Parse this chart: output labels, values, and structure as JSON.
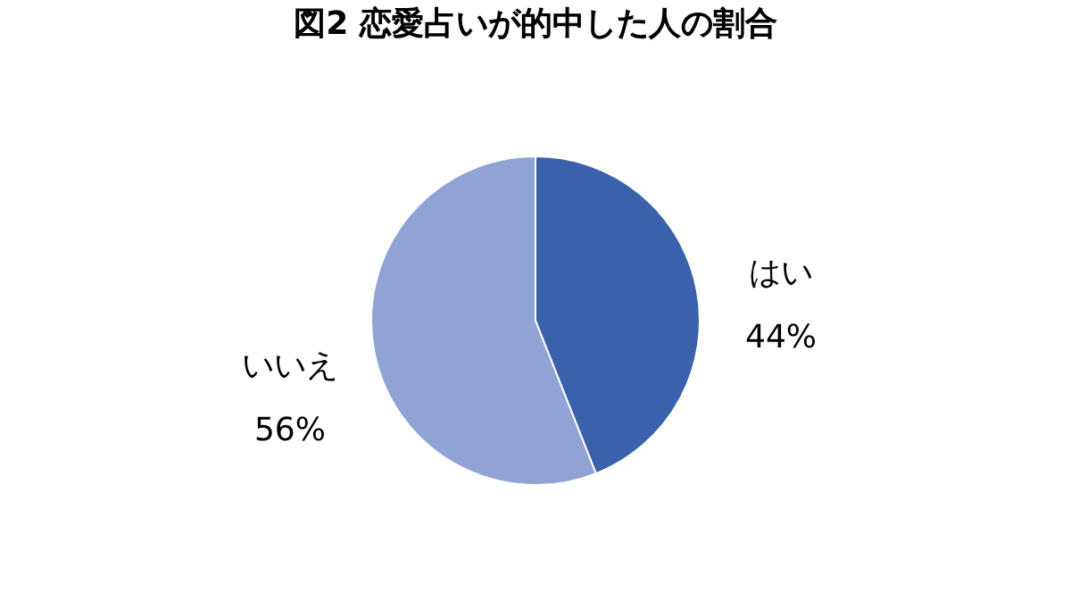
{
  "chart_data": {
    "type": "pie",
    "title": "図2 恋愛占いが的中した人の割合",
    "categories": [
      "はい",
      "いいえ"
    ],
    "values": [
      44,
      56
    ],
    "value_labels": [
      "44%",
      "56%"
    ],
    "colors": [
      "#3a62ac",
      "#8fa3d4"
    ],
    "legend": false
  }
}
